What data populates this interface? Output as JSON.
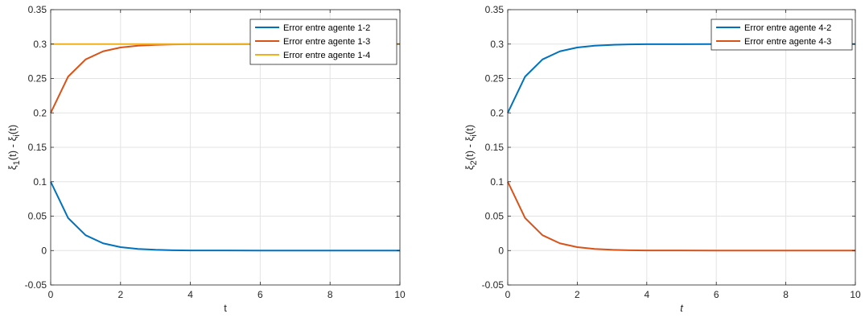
{
  "chart_data": [
    {
      "type": "line",
      "title": "",
      "xlabel": "t",
      "xlabel_italic": false,
      "ylabel": {
        "base": "ξ",
        "sub1": "1",
        "mid": "(t) - ",
        "base2": "ξ",
        "sub2": "i",
        "tail": "(t)"
      },
      "xlim": [
        0,
        10
      ],
      "ylim": [
        -0.05,
        0.35
      ],
      "xticks": [
        0,
        2,
        4,
        6,
        8,
        10
      ],
      "yticks": [
        -0.05,
        0,
        0.05,
        0.1,
        0.15,
        0.2,
        0.25,
        0.3,
        0.35
      ],
      "ytick_labels": [
        "-0.05",
        "0",
        "0.05",
        "0.1",
        "0.15",
        "0.2",
        "0.25",
        "0.3",
        "0.35"
      ],
      "xtick_labels": [
        "0",
        "2",
        "4",
        "6",
        "8",
        "10"
      ],
      "grid": true,
      "legend_position": "top-right",
      "x": [
        0,
        0.5,
        1,
        1.5,
        2,
        2.5,
        3,
        3.5,
        4,
        4.5,
        5,
        6,
        7,
        8,
        9,
        10
      ],
      "series": [
        {
          "name": "Error entre agente 1-2",
          "color": "#0072BD",
          "values": [
            0.1,
            0.0472,
            0.0223,
            0.0105,
            0.005,
            0.0024,
            0.0011,
            0.0005,
            0.0002,
            0.0001,
            0.0001,
            0,
            0,
            0,
            0,
            0
          ]
        },
        {
          "name": "Error entre agente 1-3",
          "color": "#D95319",
          "values": [
            0.2,
            0.2528,
            0.2777,
            0.2895,
            0.295,
            0.2976,
            0.2989,
            0.2995,
            0.2998,
            0.2999,
            0.2999,
            0.3,
            0.3,
            0.3,
            0.3,
            0.3
          ]
        },
        {
          "name": "Error entre agente 1-4",
          "color": "#EDB120",
          "values": [
            0.3,
            0.3,
            0.3,
            0.3,
            0.3,
            0.3,
            0.3,
            0.3,
            0.3,
            0.3,
            0.3,
            0.3,
            0.3,
            0.3,
            0.3,
            0.3
          ]
        }
      ]
    },
    {
      "type": "line",
      "title": "",
      "xlabel": "t",
      "xlabel_italic": true,
      "ylabel": {
        "base": "ξ",
        "sub1": "2",
        "mid": "(t) - ",
        "base2": "ξ",
        "sub2": "i",
        "tail": "(t)"
      },
      "xlim": [
        0,
        10
      ],
      "ylim": [
        -0.05,
        0.35
      ],
      "xticks": [
        0,
        2,
        4,
        6,
        8,
        10
      ],
      "yticks": [
        -0.05,
        0,
        0.05,
        0.1,
        0.15,
        0.2,
        0.25,
        0.3,
        0.35
      ],
      "ytick_labels": [
        "-0.05",
        "0",
        "0.05",
        "0.1",
        "0.15",
        "0.2",
        "0.25",
        "0.3",
        "0.35"
      ],
      "xtick_labels": [
        "0",
        "2",
        "4",
        "6",
        "8",
        "10"
      ],
      "grid": true,
      "legend_position": "top-right",
      "x": [
        0,
        0.5,
        1,
        1.5,
        2,
        2.5,
        3,
        3.5,
        4,
        4.5,
        5,
        6,
        7,
        8,
        9,
        10
      ],
      "series": [
        {
          "name": "Error entre agente 4-2",
          "color": "#0072BD",
          "values": [
            0.2,
            0.2528,
            0.2777,
            0.2895,
            0.295,
            0.2976,
            0.2989,
            0.2995,
            0.2998,
            0.2999,
            0.2999,
            0.3,
            0.3,
            0.3,
            0.3,
            0.3
          ]
        },
        {
          "name": "Error entre agente 4-3",
          "color": "#D95319",
          "values": [
            0.1,
            0.0472,
            0.0223,
            0.0105,
            0.005,
            0.0024,
            0.0011,
            0.0005,
            0.0002,
            0.0001,
            0.0001,
            0,
            0,
            0,
            0,
            0
          ]
        }
      ]
    }
  ]
}
